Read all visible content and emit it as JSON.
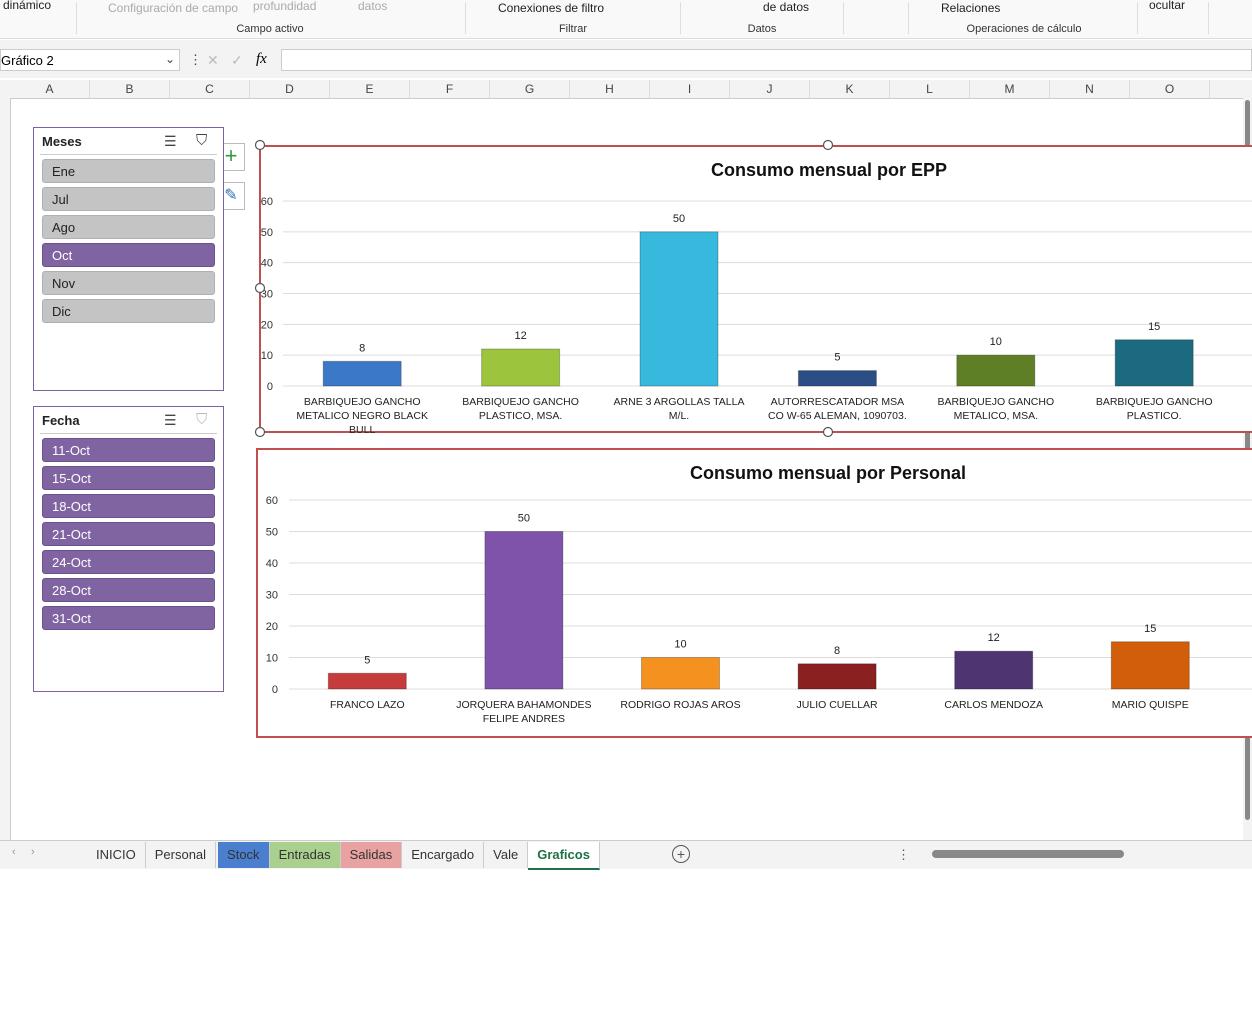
{
  "ribbon": {
    "items": [
      "dinámico",
      "Configuración de campo",
      "profundidad",
      "datos",
      "Conexiones de filtro",
      "de datos",
      "Relaciones",
      "ocultar"
    ],
    "groups": [
      "Campo activo",
      "Filtrar",
      "Datos",
      "Operaciones de cálculo"
    ]
  },
  "formula_bar": {
    "name_box": "Gráfico 2",
    "fx": "fx"
  },
  "columns": [
    "A",
    "B",
    "C",
    "D",
    "E",
    "F",
    "G",
    "H",
    "I",
    "J",
    "K",
    "L",
    "M",
    "N",
    "O"
  ],
  "slicers": [
    {
      "title": "Meses",
      "items": [
        {
          "label": "Ene",
          "selected": false
        },
        {
          "label": "Jul",
          "selected": false
        },
        {
          "label": "Ago",
          "selected": false
        },
        {
          "label": "Oct",
          "selected": true
        },
        {
          "label": "Nov",
          "selected": false
        },
        {
          "label": "Dic",
          "selected": false
        }
      ]
    },
    {
      "title": "Fecha",
      "items": [
        {
          "label": "11-Oct",
          "selected": true
        },
        {
          "label": "15-Oct",
          "selected": true
        },
        {
          "label": "18-Oct",
          "selected": true
        },
        {
          "label": "21-Oct",
          "selected": true
        },
        {
          "label": "24-Oct",
          "selected": true
        },
        {
          "label": "28-Oct",
          "selected": true
        },
        {
          "label": "31-Oct",
          "selected": true
        }
      ]
    }
  ],
  "chart_data": [
    {
      "type": "bar",
      "title": "Consumo mensual por EPP",
      "categories": [
        "BARBIQUEJO GANCHO METALICO NEGRO BLACK BULL",
        "BARBIQUEJO GANCHO PLASTICO, MSA.",
        "ARNE 3 ARGOLLAS TALLA M/L.",
        "AUTORRESCATADOR MSA CO W-65 ALEMAN, 1090703.",
        "BARBIQUEJO GANCHO METALICO, MSA.",
        "BARBIQUEJO GANCHO PLASTICO."
      ],
      "values": [
        8,
        12,
        50,
        5,
        10,
        15
      ],
      "colors": [
        "#3b78c8",
        "#9cc43d",
        "#37b9de",
        "#2b4e86",
        "#5e7f25",
        "#1c6a80"
      ],
      "ylim": [
        0,
        60
      ],
      "yticks": [
        0,
        10,
        20,
        30,
        40,
        50,
        60
      ],
      "grid": true
    },
    {
      "type": "bar",
      "title": "Consumo mensual por Personal",
      "categories": [
        "FRANCO LAZO",
        "JORQUERA BAHAMONDES FELIPE ANDRES",
        "RODRIGO ROJAS AROS",
        "JULIO CUELLAR",
        "CARLOS MENDOZA",
        "MARIO QUISPE"
      ],
      "values": [
        5,
        50,
        10,
        8,
        12,
        15
      ],
      "colors": [
        "#c63b3b",
        "#7e53a9",
        "#f5911f",
        "#8b2020",
        "#4e3471",
        "#d25d0b"
      ],
      "ylim": [
        0,
        60
      ],
      "yticks": [
        0,
        10,
        20,
        30,
        40,
        50,
        60
      ],
      "grid": true
    }
  ],
  "sheet_tabs": {
    "tabs": [
      {
        "label": "INICIO"
      },
      {
        "label": "Personal"
      },
      {
        "label": "Stock",
        "color": "#4a7fd0"
      },
      {
        "label": "Entradas",
        "color": "#a9d08e"
      },
      {
        "label": "Salidas",
        "color": "#e8a2a2"
      },
      {
        "label": "Encargado"
      },
      {
        "label": "Vale"
      },
      {
        "label": "Graficos"
      }
    ],
    "active": 7
  }
}
